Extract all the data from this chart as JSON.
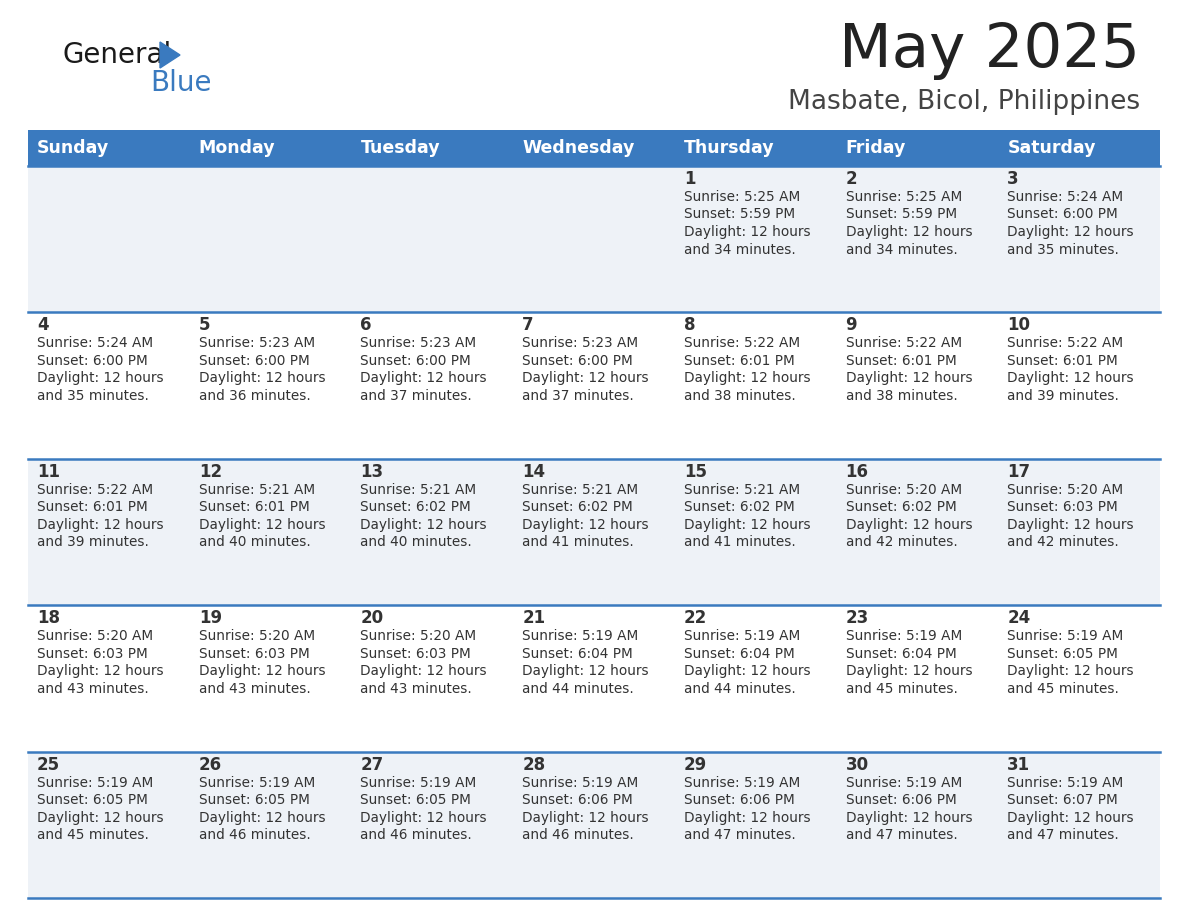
{
  "title": "May 2025",
  "subtitle": "Masbate, Bicol, Philippines",
  "days_of_week": [
    "Sunday",
    "Monday",
    "Tuesday",
    "Wednesday",
    "Thursday",
    "Friday",
    "Saturday"
  ],
  "header_bg": "#3a7abf",
  "header_text_color": "#ffffff",
  "cell_bg_odd": "#eef2f7",
  "cell_bg_even": "#ffffff",
  "row_line_color": "#3a7abf",
  "text_color": "#333333",
  "title_color": "#222222",
  "subtitle_color": "#444444",
  "calendar_data": [
    [
      null,
      null,
      null,
      null,
      {
        "day": 1,
        "sunrise": "5:25 AM",
        "sunset": "5:59 PM",
        "dl1": "12 hours",
        "dl2": "and 34 minutes."
      },
      {
        "day": 2,
        "sunrise": "5:25 AM",
        "sunset": "5:59 PM",
        "dl1": "12 hours",
        "dl2": "and 34 minutes."
      },
      {
        "day": 3,
        "sunrise": "5:24 AM",
        "sunset": "6:00 PM",
        "dl1": "12 hours",
        "dl2": "and 35 minutes."
      }
    ],
    [
      {
        "day": 4,
        "sunrise": "5:24 AM",
        "sunset": "6:00 PM",
        "dl1": "12 hours",
        "dl2": "and 35 minutes."
      },
      {
        "day": 5,
        "sunrise": "5:23 AM",
        "sunset": "6:00 PM",
        "dl1": "12 hours",
        "dl2": "and 36 minutes."
      },
      {
        "day": 6,
        "sunrise": "5:23 AM",
        "sunset": "6:00 PM",
        "dl1": "12 hours",
        "dl2": "and 37 minutes."
      },
      {
        "day": 7,
        "sunrise": "5:23 AM",
        "sunset": "6:00 PM",
        "dl1": "12 hours",
        "dl2": "and 37 minutes."
      },
      {
        "day": 8,
        "sunrise": "5:22 AM",
        "sunset": "6:01 PM",
        "dl1": "12 hours",
        "dl2": "and 38 minutes."
      },
      {
        "day": 9,
        "sunrise": "5:22 AM",
        "sunset": "6:01 PM",
        "dl1": "12 hours",
        "dl2": "and 38 minutes."
      },
      {
        "day": 10,
        "sunrise": "5:22 AM",
        "sunset": "6:01 PM",
        "dl1": "12 hours",
        "dl2": "and 39 minutes."
      }
    ],
    [
      {
        "day": 11,
        "sunrise": "5:22 AM",
        "sunset": "6:01 PM",
        "dl1": "12 hours",
        "dl2": "and 39 minutes."
      },
      {
        "day": 12,
        "sunrise": "5:21 AM",
        "sunset": "6:01 PM",
        "dl1": "12 hours",
        "dl2": "and 40 minutes."
      },
      {
        "day": 13,
        "sunrise": "5:21 AM",
        "sunset": "6:02 PM",
        "dl1": "12 hours",
        "dl2": "and 40 minutes."
      },
      {
        "day": 14,
        "sunrise": "5:21 AM",
        "sunset": "6:02 PM",
        "dl1": "12 hours",
        "dl2": "and 41 minutes."
      },
      {
        "day": 15,
        "sunrise": "5:21 AM",
        "sunset": "6:02 PM",
        "dl1": "12 hours",
        "dl2": "and 41 minutes."
      },
      {
        "day": 16,
        "sunrise": "5:20 AM",
        "sunset": "6:02 PM",
        "dl1": "12 hours",
        "dl2": "and 42 minutes."
      },
      {
        "day": 17,
        "sunrise": "5:20 AM",
        "sunset": "6:03 PM",
        "dl1": "12 hours",
        "dl2": "and 42 minutes."
      }
    ],
    [
      {
        "day": 18,
        "sunrise": "5:20 AM",
        "sunset": "6:03 PM",
        "dl1": "12 hours",
        "dl2": "and 43 minutes."
      },
      {
        "day": 19,
        "sunrise": "5:20 AM",
        "sunset": "6:03 PM",
        "dl1": "12 hours",
        "dl2": "and 43 minutes."
      },
      {
        "day": 20,
        "sunrise": "5:20 AM",
        "sunset": "6:03 PM",
        "dl1": "12 hours",
        "dl2": "and 43 minutes."
      },
      {
        "day": 21,
        "sunrise": "5:19 AM",
        "sunset": "6:04 PM",
        "dl1": "12 hours",
        "dl2": "and 44 minutes."
      },
      {
        "day": 22,
        "sunrise": "5:19 AM",
        "sunset": "6:04 PM",
        "dl1": "12 hours",
        "dl2": "and 44 minutes."
      },
      {
        "day": 23,
        "sunrise": "5:19 AM",
        "sunset": "6:04 PM",
        "dl1": "12 hours",
        "dl2": "and 45 minutes."
      },
      {
        "day": 24,
        "sunrise": "5:19 AM",
        "sunset": "6:05 PM",
        "dl1": "12 hours",
        "dl2": "and 45 minutes."
      }
    ],
    [
      {
        "day": 25,
        "sunrise": "5:19 AM",
        "sunset": "6:05 PM",
        "dl1": "12 hours",
        "dl2": "and 45 minutes."
      },
      {
        "day": 26,
        "sunrise": "5:19 AM",
        "sunset": "6:05 PM",
        "dl1": "12 hours",
        "dl2": "and 46 minutes."
      },
      {
        "day": 27,
        "sunrise": "5:19 AM",
        "sunset": "6:05 PM",
        "dl1": "12 hours",
        "dl2": "and 46 minutes."
      },
      {
        "day": 28,
        "sunrise": "5:19 AM",
        "sunset": "6:06 PM",
        "dl1": "12 hours",
        "dl2": "and 46 minutes."
      },
      {
        "day": 29,
        "sunrise": "5:19 AM",
        "sunset": "6:06 PM",
        "dl1": "12 hours",
        "dl2": "and 47 minutes."
      },
      {
        "day": 30,
        "sunrise": "5:19 AM",
        "sunset": "6:06 PM",
        "dl1": "12 hours",
        "dl2": "and 47 minutes."
      },
      {
        "day": 31,
        "sunrise": "5:19 AM",
        "sunset": "6:07 PM",
        "dl1": "12 hours",
        "dl2": "and 47 minutes."
      }
    ]
  ]
}
